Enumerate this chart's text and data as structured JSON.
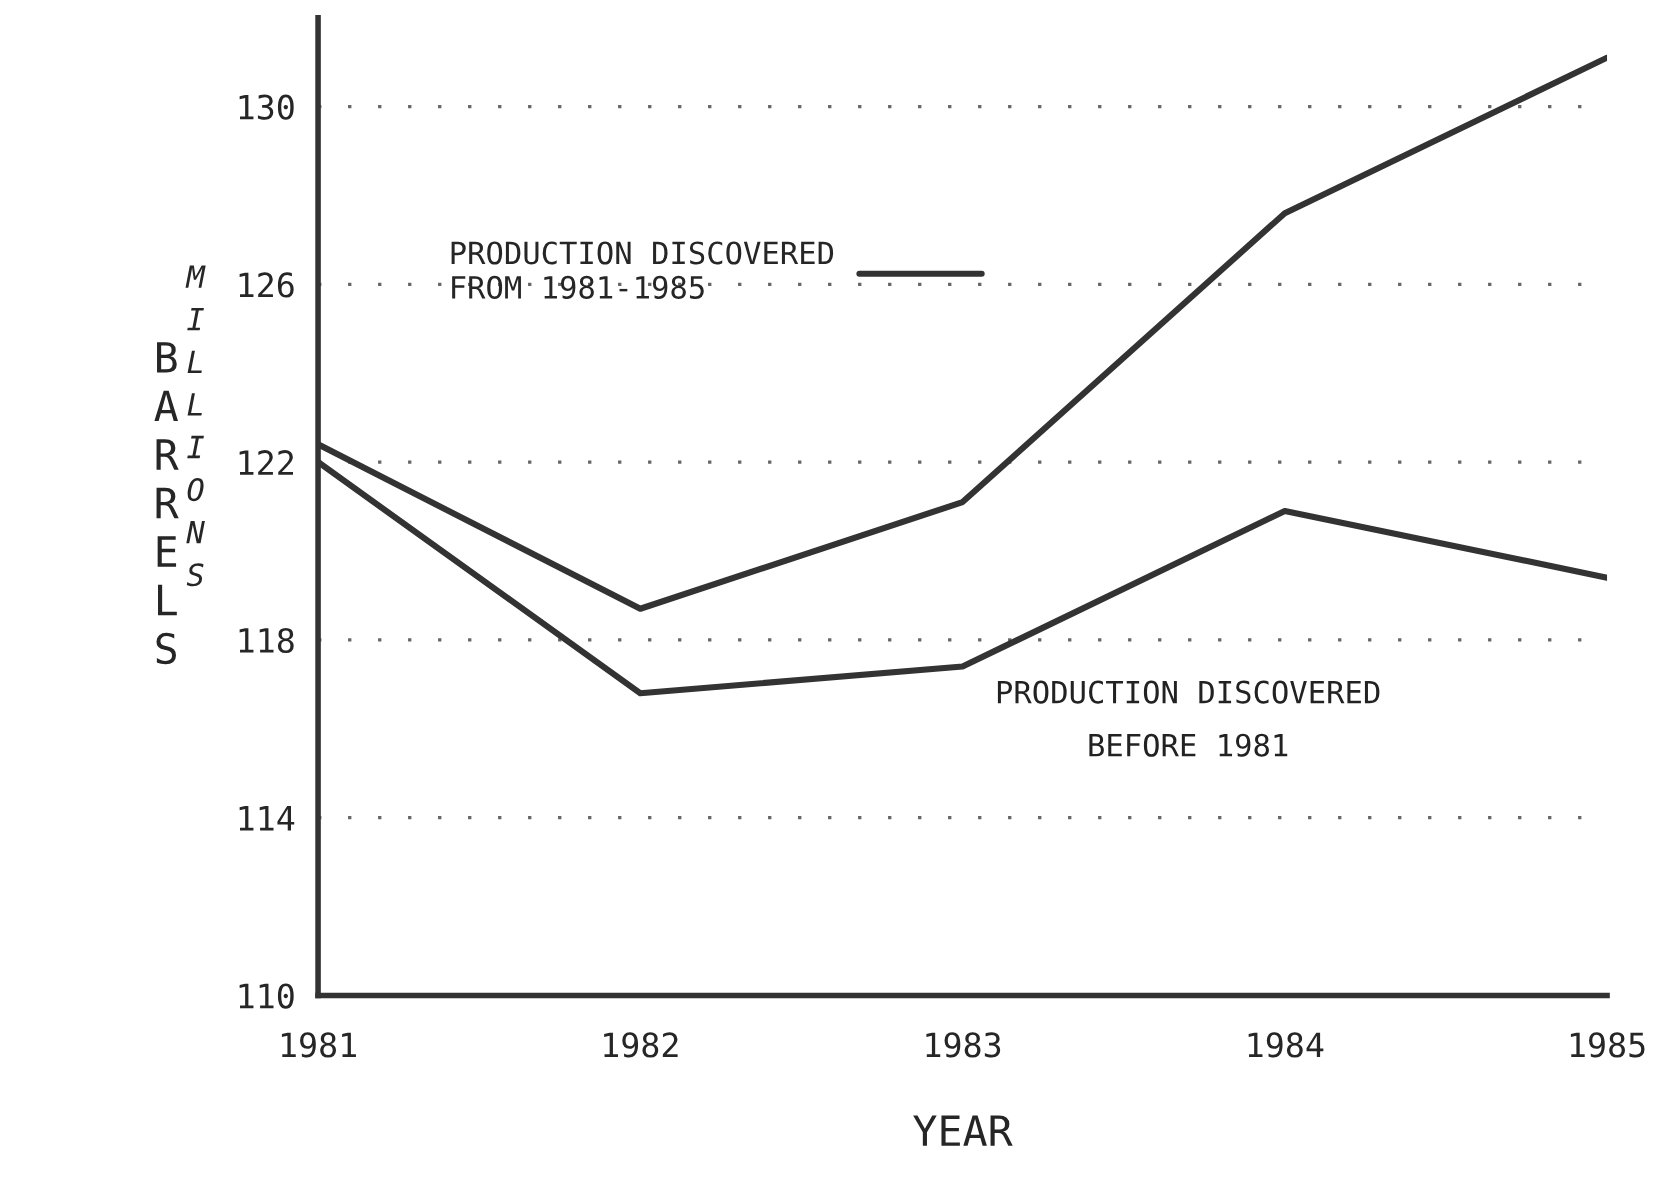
{
  "chart_data": {
    "type": "line",
    "x": [
      1981,
      1982,
      1983,
      1984,
      1985
    ],
    "xlabel": "YEAR",
    "ylabel": "BARRELS",
    "annotations": [
      "MILLIONS"
    ],
    "series": [
      {
        "name": "PRODUCTION DISCOVERED\nFROM 1981-1985",
        "color": "#333333",
        "values": [
          122.4,
          118.7,
          121.1,
          127.6,
          131.1
        ]
      },
      {
        "name": "PRODUCTION DISCOVERED\nBEFORE 1981",
        "color": "#333333",
        "values": [
          122.0,
          116.8,
          117.4,
          120.9,
          119.4
        ]
      }
    ],
    "xlim": [
      1981,
      1985
    ],
    "xticks": [
      1981,
      1982,
      1983,
      1984,
      1985
    ],
    "ylim": [
      110,
      132
    ],
    "yticks": [
      110,
      114,
      118,
      122,
      126,
      130
    ],
    "grid": "y",
    "legend": "top left",
    "line_style": "solid",
    "marker": "none"
  }
}
